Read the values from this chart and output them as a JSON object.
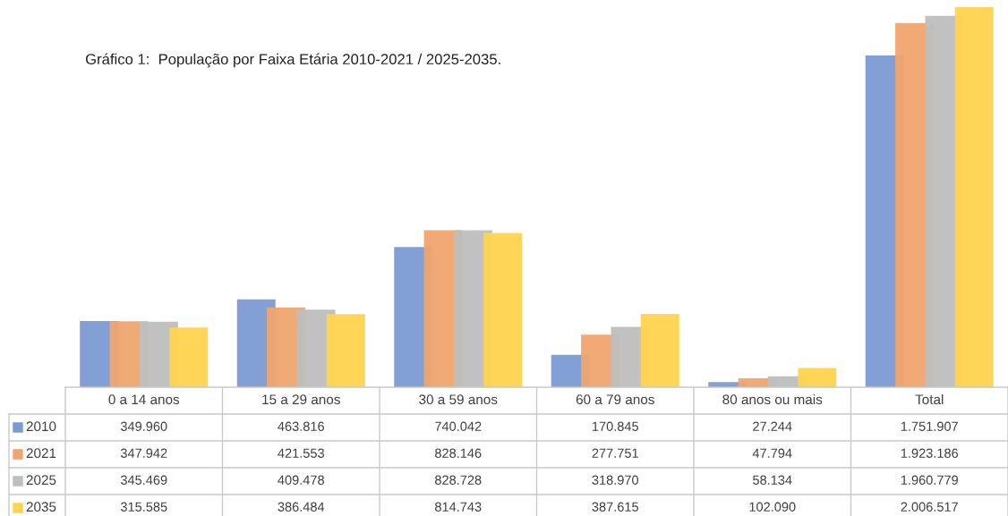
{
  "chart_data": {
    "type": "bar",
    "title": "Gráfico 1:  População por Faixa Etária 2010-2021 / 2025-2035.",
    "categories": [
      "0 a 14 anos",
      "15 a 29 anos",
      "30 a 59 anos",
      "60 a 79 anos",
      "80 anos ou mais",
      "Total"
    ],
    "series": [
      {
        "name": "2010",
        "color": "#7b9bd4",
        "values": [
          349960,
          463816,
          740042,
          170845,
          27244,
          1751907
        ],
        "value_labels": [
          "349.960",
          "463.816",
          "740.042",
          "170.845",
          "27.244",
          "1.751.907"
        ]
      },
      {
        "name": "2021",
        "color": "#f0a46f",
        "values": [
          347942,
          421553,
          828146,
          277751,
          47794,
          1923186
        ],
        "value_labels": [
          "347.942",
          "421.553",
          "828.146",
          "277.751",
          "47.794",
          "1.923.186"
        ]
      },
      {
        "name": "2025",
        "color": "#bebebe",
        "values": [
          345469,
          409478,
          828728,
          318970,
          58134,
          1960779
        ],
        "value_labels": [
          "345.469",
          "409.478",
          "828.728",
          "318.970",
          "58.134",
          "1.960.779"
        ]
      },
      {
        "name": "2035",
        "color": "#ffd44f",
        "values": [
          315585,
          386484,
          814743,
          387615,
          102090,
          2006517
        ],
        "value_labels": [
          "315.585",
          "386.484",
          "814.743",
          "387.615",
          "102.090",
          "2.006.517"
        ]
      }
    ],
    "legend": "bottom left"
  }
}
